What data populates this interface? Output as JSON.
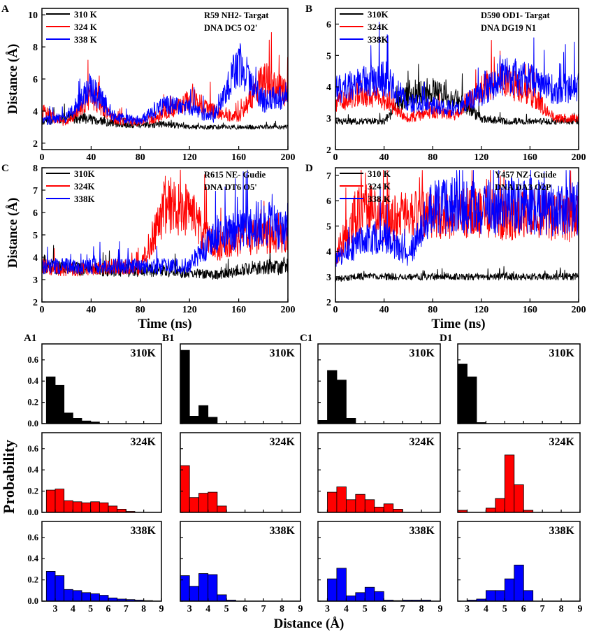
{
  "figure": {
    "time_axis_label": "Time (ns)",
    "distance_axis_label": "Distance (Å)",
    "probability_axis_label": "Probability",
    "hist_distance_axis_label": "Distance (Å)"
  },
  "colors": {
    "310": "#000000",
    "324": "#ff0000",
    "338": "#0000ff"
  },
  "chart_data": [
    {
      "id": "A",
      "type": "line",
      "panel_label": "A",
      "annotation": [
        "R59 NH2- Targat",
        "DNA DC5 O2'"
      ],
      "legend": [
        "310 K",
        "324 K",
        "338 K"
      ],
      "xlabel": "",
      "ylabel": "Distance (Å)",
      "xlim": [
        0,
        200
      ],
      "ylim": [
        1.6,
        10.4
      ],
      "xticks": [
        "0",
        "40",
        "80",
        "120",
        "160",
        "200"
      ],
      "yticks": [
        "2",
        "4",
        "6",
        "8",
        "10"
      ],
      "series": [
        {
          "name": "310 K",
          "x": [
            0,
            20,
            40,
            60,
            80,
            100,
            120,
            140,
            160,
            180,
            200
          ],
          "y": [
            3.3,
            3.6,
            3.5,
            3.2,
            3.1,
            3.2,
            3.0,
            3.0,
            3.0,
            3.0,
            3.0
          ]
        },
        {
          "name": "324 K",
          "x": [
            0,
            20,
            40,
            60,
            80,
            100,
            120,
            140,
            160,
            180,
            200
          ],
          "y": [
            4.0,
            3.2,
            5.0,
            3.4,
            3.3,
            3.8,
            4.8,
            4.0,
            3.6,
            6.0,
            5.0
          ]
        },
        {
          "name": "338 K",
          "x": [
            0,
            20,
            40,
            60,
            80,
            100,
            120,
            140,
            160,
            180,
            200
          ],
          "y": [
            3.4,
            3.6,
            5.5,
            3.6,
            3.4,
            4.4,
            4.2,
            3.6,
            7.0,
            4.6,
            5.0
          ]
        }
      ]
    },
    {
      "id": "B",
      "type": "line",
      "panel_label": "B",
      "annotation": [
        "D590 OD1- Targat",
        "DNA DG19 N1"
      ],
      "legend": [
        "310K",
        "324K",
        "338K"
      ],
      "xlabel": "",
      "ylabel": "",
      "xlim": [
        0,
        200
      ],
      "ylim": [
        2,
        6.5
      ],
      "xticks": [
        "0",
        "40",
        "80",
        "120",
        "160",
        "200"
      ],
      "yticks": [
        "2",
        "3",
        "4",
        "5",
        "6"
      ],
      "series": [
        {
          "name": "310K",
          "x": [
            0,
            20,
            40,
            60,
            80,
            100,
            120,
            140,
            160,
            180,
            200
          ],
          "y": [
            2.9,
            2.9,
            2.9,
            3.8,
            3.9,
            3.6,
            3.0,
            2.9,
            2.9,
            2.9,
            2.9
          ]
        },
        {
          "name": "324K",
          "x": [
            0,
            20,
            40,
            60,
            80,
            100,
            120,
            140,
            160,
            180,
            200
          ],
          "y": [
            3.5,
            3.8,
            3.6,
            3.0,
            3.2,
            3.1,
            4.0,
            4.2,
            3.8,
            3.0,
            3.0
          ]
        },
        {
          "name": "338K",
          "x": [
            0,
            20,
            40,
            60,
            80,
            100,
            120,
            140,
            160,
            180,
            200
          ],
          "y": [
            3.9,
            4.1,
            4.3,
            3.5,
            3.4,
            3.3,
            3.8,
            4.4,
            4.2,
            3.9,
            4.0
          ]
        }
      ]
    },
    {
      "id": "C",
      "type": "line",
      "panel_label": "C",
      "annotation": [
        "R615 NE- Gudie",
        "DNA DT6 O5'"
      ],
      "legend": [
        "310K",
        "324K",
        "338K"
      ],
      "xlabel": "Time (ns)",
      "ylabel": "Distance (Å)",
      "xlim": [
        0,
        200
      ],
      "ylim": [
        2,
        8
      ],
      "xticks": [
        "0",
        "40",
        "80",
        "120",
        "160",
        "200"
      ],
      "yticks": [
        "2",
        "3",
        "4",
        "5",
        "6",
        "7",
        "8"
      ],
      "series": [
        {
          "name": "310K",
          "x": [
            0,
            20,
            40,
            60,
            80,
            100,
            120,
            140,
            160,
            180,
            200
          ],
          "y": [
            3.6,
            3.5,
            3.5,
            3.4,
            3.4,
            3.4,
            3.3,
            3.2,
            3.4,
            3.6,
            3.5
          ]
        },
        {
          "name": "324K",
          "x": [
            0,
            20,
            40,
            60,
            80,
            100,
            120,
            140,
            160,
            180,
            200
          ],
          "y": [
            3.6,
            3.4,
            3.5,
            3.6,
            3.5,
            6.4,
            6.1,
            4.4,
            4.8,
            5.0,
            4.8
          ]
        },
        {
          "name": "338K",
          "x": [
            0,
            20,
            40,
            60,
            80,
            100,
            120,
            140,
            160,
            180,
            200
          ],
          "y": [
            3.6,
            3.6,
            3.6,
            3.6,
            3.6,
            3.6,
            3.6,
            5.0,
            5.2,
            5.6,
            5.1
          ]
        }
      ]
    },
    {
      "id": "D",
      "type": "line",
      "panel_label": "D",
      "annotation": [
        "Y457 NZ- Guide",
        "DNA DA3 O2P"
      ],
      "legend": [
        "310 K",
        "324 K",
        "338 K"
      ],
      "xlabel": "Time (ns)",
      "ylabel": "",
      "xlim": [
        0,
        200
      ],
      "ylim": [
        2,
        7.3
      ],
      "xticks": [
        "0",
        "40",
        "80",
        "120",
        "160",
        "200"
      ],
      "yticks": [
        "2",
        "3",
        "4",
        "5",
        "6",
        "7"
      ],
      "series": [
        {
          "name": "310 K",
          "x": [
            0,
            20,
            40,
            60,
            80,
            100,
            120,
            140,
            160,
            180,
            200
          ],
          "y": [
            2.9,
            3.0,
            3.0,
            3.0,
            3.0,
            3.0,
            3.0,
            3.0,
            3.0,
            3.0,
            3.0
          ]
        },
        {
          "name": "324 K",
          "x": [
            0,
            20,
            40,
            60,
            80,
            100,
            120,
            140,
            160,
            180,
            200
          ],
          "y": [
            3.8,
            5.8,
            5.3,
            5.4,
            5.4,
            5.5,
            5.5,
            5.4,
            5.5,
            5.4,
            5.3
          ]
        },
        {
          "name": "338 K",
          "x": [
            0,
            20,
            40,
            60,
            80,
            100,
            120,
            140,
            160,
            180,
            200
          ],
          "y": [
            3.6,
            4.4,
            4.6,
            3.8,
            5.8,
            5.8,
            5.7,
            5.8,
            5.8,
            5.6,
            5.7
          ]
        }
      ]
    },
    {
      "id": "A1",
      "type": "bar",
      "panel_label": "A1",
      "xlim": [
        2.25,
        9
      ],
      "ylim": [
        0,
        0.75
      ],
      "xticks": [
        "3",
        "4",
        "5",
        "6",
        "7",
        "8",
        "9"
      ],
      "yticks": [
        "0.0",
        "0.2",
        "0.4",
        "0.6"
      ],
      "bin_centers": [
        2.75,
        3.25,
        3.75,
        4.25,
        4.75,
        5.25,
        5.75,
        6.25,
        6.75,
        7.25,
        7.75,
        8.25,
        8.75
      ],
      "series": [
        {
          "name": "310K",
          "values": [
            0.44,
            0.36,
            0.1,
            0.05,
            0.025,
            0.015,
            0.0,
            0.0,
            0.0,
            0.0,
            0.0,
            0.0,
            0.0
          ]
        },
        {
          "name": "324K",
          "values": [
            0.21,
            0.22,
            0.11,
            0.1,
            0.09,
            0.1,
            0.09,
            0.06,
            0.03,
            0.01,
            0.0,
            0.0,
            0.0
          ]
        },
        {
          "name": "338K",
          "values": [
            0.28,
            0.24,
            0.11,
            0.1,
            0.08,
            0.07,
            0.055,
            0.03,
            0.02,
            0.015,
            0.01,
            0.005,
            0.0
          ]
        }
      ]
    },
    {
      "id": "B1",
      "type": "bar",
      "panel_label": "B1",
      "xlim": [
        2.5,
        9
      ],
      "ylim": [
        0,
        0.75
      ],
      "xticks": [
        "3",
        "4",
        "5",
        "6",
        "7",
        "8",
        "9"
      ],
      "yticks": [
        "0.0",
        "0.2",
        "0.4",
        "0.6"
      ],
      "bin_centers": [
        2.75,
        3.25,
        3.75,
        4.25,
        4.75,
        5.25,
        5.75,
        6.25,
        6.75,
        7.25,
        7.75,
        8.25,
        8.75
      ],
      "series": [
        {
          "name": "310K",
          "values": [
            0.69,
            0.07,
            0.17,
            0.06,
            0.0,
            0.0,
            0.0,
            0.0,
            0.0,
            0.0,
            0.0,
            0.0,
            0.0
          ]
        },
        {
          "name": "324K",
          "values": [
            0.44,
            0.14,
            0.18,
            0.19,
            0.06,
            0.0,
            0.0,
            0.0,
            0.0,
            0.0,
            0.0,
            0.0,
            0.0
          ]
        },
        {
          "name": "338K",
          "values": [
            0.24,
            0.14,
            0.26,
            0.25,
            0.06,
            0.01,
            0.0,
            0.0,
            0.0,
            0.0,
            0.0,
            0.0,
            0.0
          ]
        }
      ]
    },
    {
      "id": "C1",
      "type": "bar",
      "panel_label": "C1",
      "xlim": [
        2.5,
        9
      ],
      "ylim": [
        0,
        0.75
      ],
      "xticks": [
        "3",
        "4",
        "5",
        "6",
        "7",
        "8",
        "9"
      ],
      "yticks": [
        "0.0",
        "0.2",
        "0.4",
        "0.6"
      ],
      "bin_centers": [
        2.75,
        3.25,
        3.75,
        4.25,
        4.75,
        5.25,
        5.75,
        6.25,
        6.75,
        7.25,
        7.75,
        8.25,
        8.75
      ],
      "series": [
        {
          "name": "310K",
          "values": [
            0.03,
            0.5,
            0.41,
            0.05,
            0.0,
            0.0,
            0.0,
            0.0,
            0.0,
            0.0,
            0.0,
            0.0,
            0.0
          ]
        },
        {
          "name": "324K",
          "values": [
            0.0,
            0.19,
            0.24,
            0.12,
            0.17,
            0.12,
            0.05,
            0.08,
            0.03,
            0.0,
            0.0,
            0.0,
            0.0
          ]
        },
        {
          "name": "338K",
          "values": [
            0.0,
            0.21,
            0.31,
            0.05,
            0.08,
            0.13,
            0.09,
            0.01,
            0.005,
            0.01,
            0.01,
            0.01,
            0.0
          ]
        }
      ]
    },
    {
      "id": "D1",
      "type": "bar",
      "panel_label": "D1",
      "xlim": [
        2.5,
        9
      ],
      "ylim": [
        0,
        0.75
      ],
      "xticks": [
        "3",
        "4",
        "5",
        "6",
        "7",
        "8",
        "9"
      ],
      "yticks": [
        "0.0",
        "0.2",
        "0.4",
        "0.6"
      ],
      "bin_centers": [
        2.75,
        3.25,
        3.75,
        4.25,
        4.75,
        5.25,
        5.75,
        6.25,
        6.75,
        7.25,
        7.75,
        8.25,
        8.75
      ],
      "series": [
        {
          "name": "310K",
          "values": [
            0.56,
            0.44,
            0.01,
            0.0,
            0.0,
            0.0,
            0.0,
            0.0,
            0.0,
            0.0,
            0.0,
            0.0,
            0.0
          ]
        },
        {
          "name": "324K",
          "values": [
            0.02,
            0.0,
            0.0,
            0.04,
            0.13,
            0.54,
            0.26,
            0.02,
            0.0,
            0.0,
            0.0,
            0.0,
            0.0
          ]
        },
        {
          "name": "338K",
          "values": [
            0.0,
            0.01,
            0.02,
            0.1,
            0.1,
            0.21,
            0.34,
            0.1,
            0.0,
            0.0,
            0.0,
            0.0,
            0.0
          ]
        }
      ]
    }
  ]
}
